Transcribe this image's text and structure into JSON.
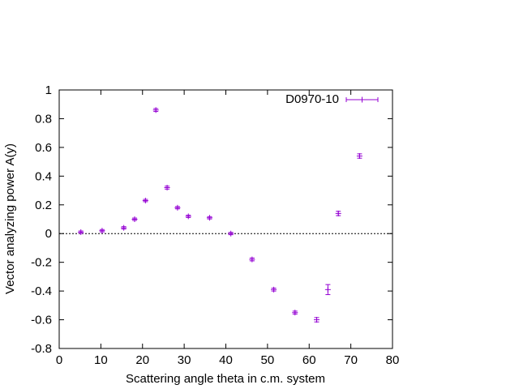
{
  "chart_data": {
    "type": "scatter",
    "xlabel": "Scattering angle theta in c.m. system",
    "ylabel": "Vector analyzing power A(y)",
    "xlim": [
      0,
      80
    ],
    "ylim": [
      -0.8,
      1
    ],
    "x_ticks": [
      "0",
      "10",
      "20",
      "30",
      "40",
      "50",
      "60",
      "70",
      "80"
    ],
    "y_ticks": [
      "-0.8",
      "-0.6",
      "-0.4",
      "-0.2",
      "0",
      "0.2",
      "0.4",
      "0.6",
      "0.8",
      "1"
    ],
    "zero_line": true,
    "grid": false,
    "legend_position": "top-right",
    "colors": {
      "series": "#9400d3",
      "axis": "#000000"
    },
    "series": [
      {
        "name": "D0970-10",
        "style": "points with y error bars",
        "points": [
          {
            "x": 5.2,
            "y": 0.01,
            "err": 0.008
          },
          {
            "x": 10.3,
            "y": 0.02,
            "err": 0.008
          },
          {
            "x": 15.5,
            "y": 0.04,
            "err": 0.008
          },
          {
            "x": 18.1,
            "y": 0.1,
            "err": 0.008
          },
          {
            "x": 20.7,
            "y": 0.23,
            "err": 0.008
          },
          {
            "x": 23.2,
            "y": 0.86,
            "err": 0.01
          },
          {
            "x": 25.9,
            "y": 0.32,
            "err": 0.01
          },
          {
            "x": 28.4,
            "y": 0.18,
            "err": 0.008
          },
          {
            "x": 31.0,
            "y": 0.12,
            "err": 0.008
          },
          {
            "x": 36.1,
            "y": 0.11,
            "err": 0.008
          },
          {
            "x": 41.2,
            "y": 0.0,
            "err": 0.008
          },
          {
            "x": 46.3,
            "y": -0.18,
            "err": 0.01
          },
          {
            "x": 51.5,
            "y": -0.39,
            "err": 0.01
          },
          {
            "x": 56.6,
            "y": -0.55,
            "err": 0.01
          },
          {
            "x": 61.8,
            "y": -0.6,
            "err": 0.015
          },
          {
            "x": 64.5,
            "y": -0.39,
            "err": 0.035
          },
          {
            "x": 67.0,
            "y": 0.14,
            "err": 0.015
          },
          {
            "x": 72.1,
            "y": 0.54,
            "err": 0.015
          }
        ]
      }
    ]
  }
}
